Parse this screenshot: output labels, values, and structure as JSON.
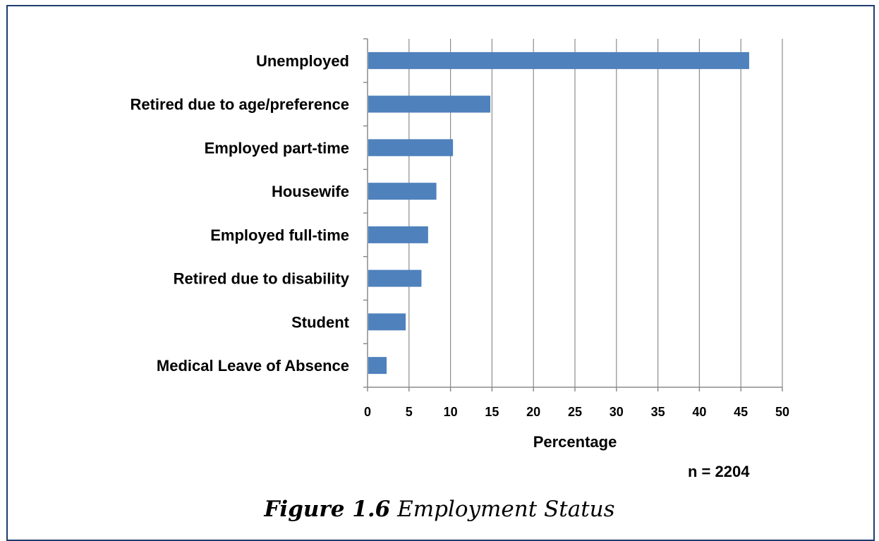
{
  "chart_data": {
    "type": "bar",
    "orientation": "horizontal",
    "categories": [
      "Unemployed",
      "Retired due to age/preference",
      "Employed part-time",
      "Housewife",
      "Employed full-time",
      "Retired due to disability",
      "Student",
      "Medical Leave of Absence"
    ],
    "values": [
      46,
      14.8,
      10.3,
      8.3,
      7.3,
      6.5,
      4.6,
      2.3
    ],
    "xlabel": "Percentage",
    "xlim": [
      0,
      50
    ],
    "xticks": [
      "0",
      "5",
      "10",
      "15",
      "20",
      "25",
      "30",
      "35",
      "40",
      "45",
      "50"
    ],
    "grid": "vertical",
    "bar_color": "#4f81bd"
  },
  "annotation": {
    "sample_size": "n = 2204"
  },
  "caption": {
    "figure_number": "Figure 1.6",
    "title": "Employment Status"
  }
}
